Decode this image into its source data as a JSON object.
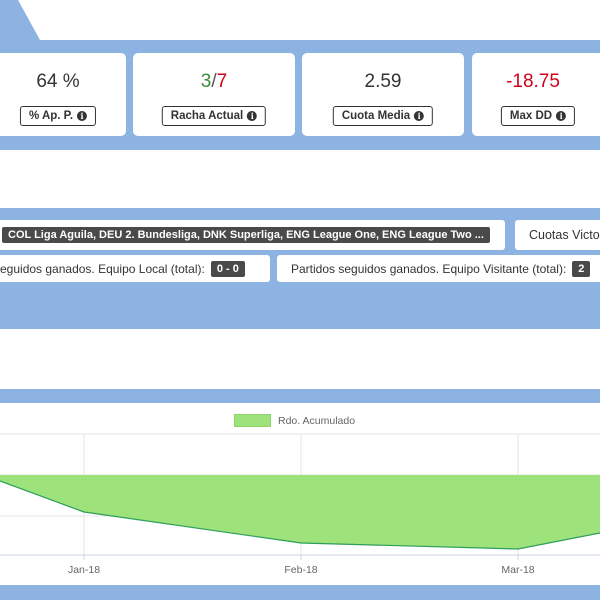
{
  "stats": [
    {
      "value": "64 %",
      "label": "% Ap. P."
    },
    {
      "value_a": "3",
      "value_sep": "/",
      "value_b": "7",
      "label": "Racha Actual"
    },
    {
      "value": "2.59",
      "label": "Cuota Media"
    },
    {
      "value": "-18.75",
      "label": "Max DD"
    }
  ],
  "filters": {
    "leagues": "COL Liga Aguila, DEU 2. Bundesliga, DNK Superliga, ENG League One, ENG League Two ...",
    "odds_label": "Cuotas Victo",
    "home_streak_label": "eguidos ganados. Equipo Local (total):",
    "home_streak_value": "0 - 0",
    "away_streak_label": "Partidos seguidos ganados. Equipo Visitante (total):",
    "away_streak_value": "2"
  },
  "colors": {
    "band": "#8db3e2",
    "positive": "#3c8c3c",
    "negative": "#d0021b",
    "series_fill": "#9de27a",
    "series_line": "#2e9e5a"
  },
  "chart_data": {
    "type": "area",
    "series": [
      {
        "name": "Rdo. Acumulado"
      }
    ],
    "x": [
      "Jan-18",
      "Feb-18",
      "Mar-18"
    ],
    "xlabel": "",
    "ylabel": "",
    "grid": true,
    "legend_position": "top"
  }
}
